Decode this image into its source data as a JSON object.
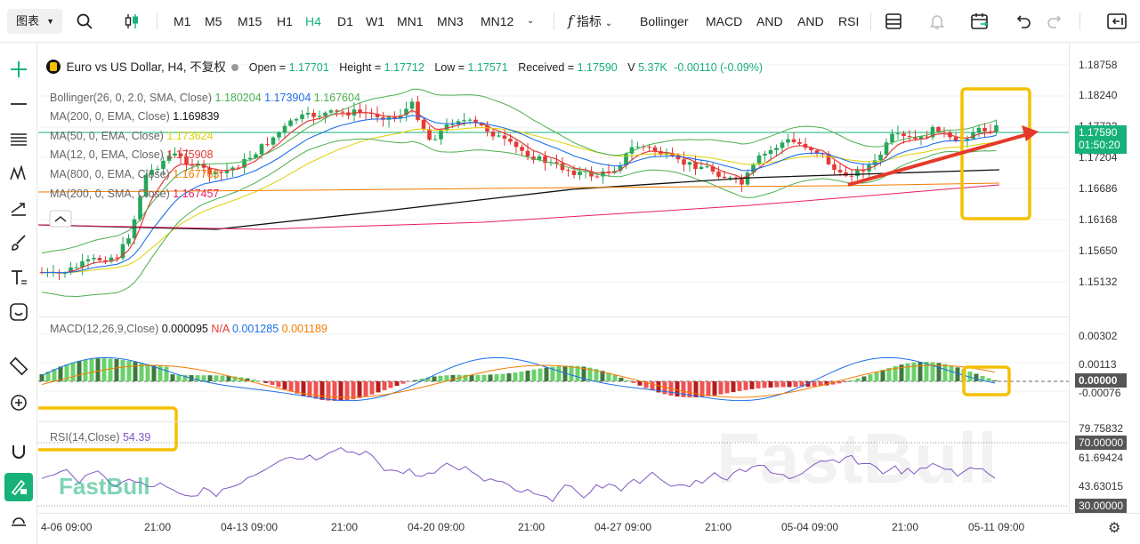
{
  "toolbar": {
    "chart_type": "图表",
    "timeframes": [
      "M1",
      "M5",
      "M15",
      "H1",
      "H4",
      "D1",
      "W1",
      "MN1",
      "MN3",
      "MN12"
    ],
    "active_timeframe": "H4",
    "indicators_label": "指标",
    "indicator_buttons": [
      "Bollinger",
      "MACD",
      "AND",
      "AND",
      "RSI"
    ]
  },
  "symbol": {
    "name": "Euro vs US Dollar, H4, 不复权",
    "open_label": "Open =",
    "open": "1.17701",
    "high_label": "Height =",
    "high": "1.17712",
    "low_label": "Low =",
    "low": "1.17571",
    "recv_label": "Received =",
    "recv": "1.17590",
    "vol_label": "V",
    "vol": "5.37K",
    "change": "-0.00110 (-0.09%)"
  },
  "legend": [
    {
      "label": "Bollinger(26, 0, 2.0, SMA, Close)",
      "values": [
        "1.180204",
        "1.173904",
        "1.167604"
      ],
      "colors": [
        "#4caf50",
        "#1e70e8",
        "#4caf50"
      ]
    },
    {
      "label": "MA(200, 0, EMA, Close)",
      "values": [
        "1.169839"
      ],
      "colors": [
        "#111111"
      ]
    },
    {
      "label": "MA(50, 0, EMA, Close)",
      "values": [
        "1.173624"
      ],
      "colors": [
        "#e0d000"
      ]
    },
    {
      "label": "MA(12, 0, EMA, Close)",
      "values": [
        "1.175908"
      ],
      "colors": [
        "#e53935"
      ]
    },
    {
      "label": "MA(800, 0, EMA, Close)",
      "values": [
        "1.167763"
      ],
      "colors": [
        "#f57c00"
      ]
    },
    {
      "label": "MA(200, 0, SMA, Close)",
      "values": [
        "1.167457"
      ],
      "colors": [
        "#e91e63"
      ]
    }
  ],
  "macd": {
    "label": "MACD(12,26,9,Close)",
    "v1": "0.000095",
    "v2": "N/A",
    "v3": "0.001285",
    "v4": "0.001189"
  },
  "rsi": {
    "label": "RSI(14,Close)",
    "value": "54.39"
  },
  "price_axis": [
    "1.18758",
    "1.18240",
    "1.17722",
    "1.17204",
    "1.16686",
    "1.16168",
    "1.15650",
    "1.15132"
  ],
  "macd_axis": [
    "0.00302",
    "0.00113",
    "-0.00076"
  ],
  "rsi_axis": [
    "79.75832",
    "61.69424",
    "43.63015"
  ],
  "price_tag": {
    "price": "1.17590",
    "countdown": "01:50:20"
  },
  "macd_tag": "0.00000",
  "rsi_tags": [
    "70.00000",
    "30.00000"
  ],
  "time_axis": [
    "4-06 09:00",
    "21:00",
    "04-13 09:00",
    "21:00",
    "04-20 09:00",
    "21:00",
    "04-27 09:00",
    "21:00",
    "05-04 09:00",
    "21:00",
    "05-11 09:00"
  ],
  "watermark": "FastBull",
  "brand": "FastBull",
  "colors": {
    "up": "#26a65b",
    "down": "#e53935",
    "accent": "#16b27a",
    "highlight": "#f5c000",
    "arrow": "#e53a2a"
  }
}
